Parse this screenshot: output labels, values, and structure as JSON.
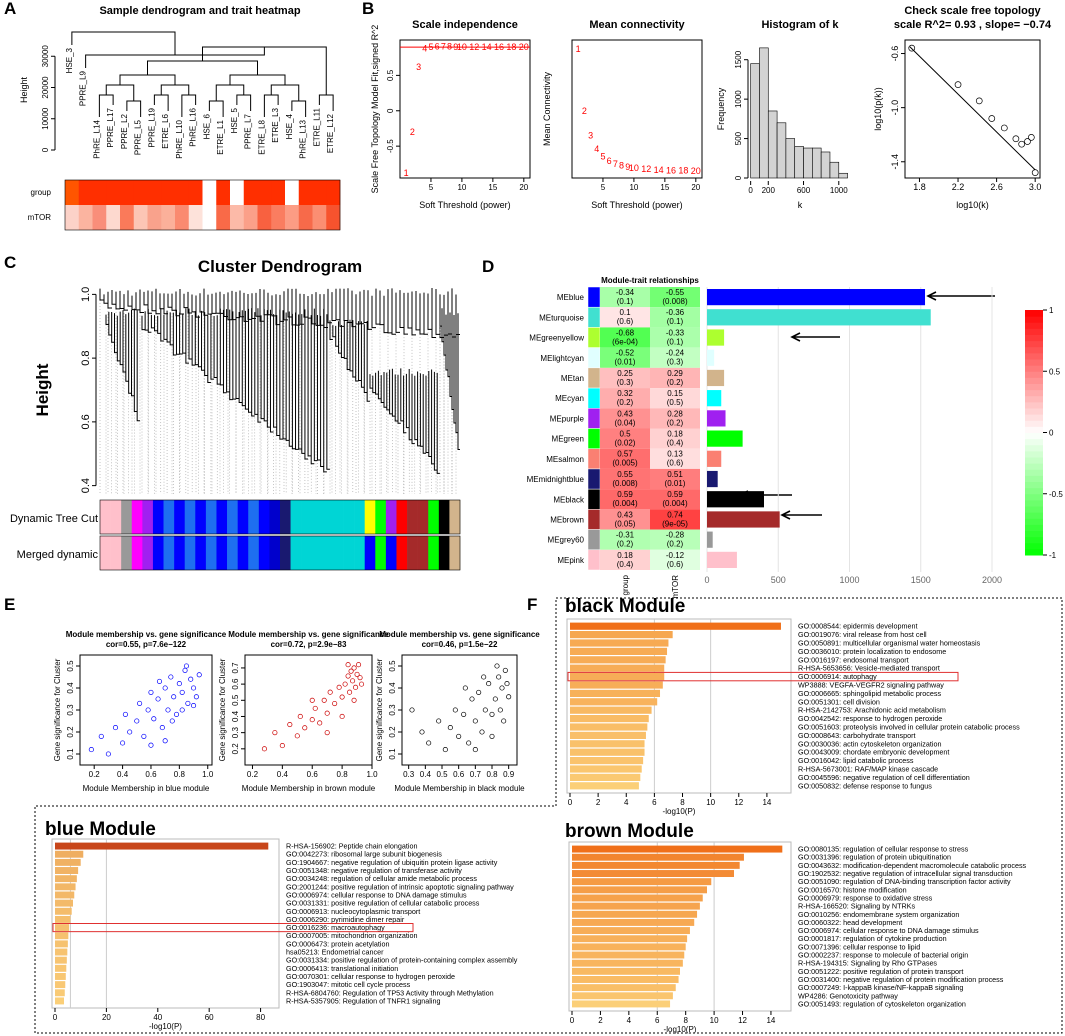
{
  "chart_data": [
    {
      "type": "sample_dendrogram",
      "panel": "A",
      "title": "Sample dendrogram and trait heatmap",
      "y_label": "Height",
      "ylim": [
        0,
        40000
      ],
      "yticks": [
        0,
        10000,
        20000,
        30000
      ],
      "leaves": [
        "HSE_3",
        "PPRE_L9",
        "PhRE_L14",
        "PPRE_L17",
        "PPRE_L2",
        "PPRE_L5",
        "PPRE_L19",
        "ETRE_L6",
        "PhRE_L10",
        "PhRE_L16",
        "HSE_6",
        "ETRE_L1",
        "HSE_5",
        "PPRE_L7",
        "ETRE_L8",
        "ETRE_L3",
        "HSE_4",
        "PhRE_L13",
        "ETRE_L11",
        "ETRE_L12"
      ],
      "rows": [
        "group",
        "mTOR"
      ],
      "row_colors": [
        [
          "#ff5500",
          "#ff2f00",
          "#ff2f00",
          "#ff2f00",
          "#ff2f00",
          "#ff2f00",
          "#ff2f00",
          "#ff2f00",
          "#ff2f00",
          "#ff2f00",
          "#ffffff",
          "#ff2f00",
          "#ffffff",
          "#ff2f00",
          "#ff2f00",
          "#ff2f00",
          "#ffffff",
          "#ff2f00",
          "#ff2f00",
          "#ff2f00"
        ],
        [
          "#fcd2c8",
          "#fbb4a0",
          "#f98e7a",
          "#fdd9cf",
          "#fa7a5a",
          "#fcc5b5",
          "#f9a28c",
          "#fbb09a",
          "#fa8a70",
          "#fde2da",
          "#ffffff",
          "#f96a48",
          "#fcbaa8",
          "#fba089",
          "#f86140",
          "#fa7d60",
          "#fc9c84",
          "#f76a4a",
          "#fb8e72",
          "#f7532e"
        ]
      ]
    },
    {
      "type": "text_scatter",
      "panel": "B",
      "title": "Scale independence",
      "x_label": "Soft Threshold (power)",
      "y_label": "Scale Free Topology Model Fit,signed R^2",
      "color": "#ff0000",
      "x": [
        1,
        2,
        3,
        4,
        5,
        6,
        7,
        8,
        9,
        10,
        12,
        14,
        16,
        18,
        20
      ],
      "values": [
        -0.88,
        -0.3,
        0.62,
        0.88,
        0.9,
        0.91,
        0.91,
        0.91,
        0.9,
        0.9,
        0.9,
        0.9,
        0.9,
        0.9,
        0.9
      ],
      "cutoff": 0.9,
      "xlim": [
        0,
        21
      ],
      "xticks": [
        5,
        10,
        15,
        20
      ],
      "ylim": [
        -0.95,
        1.0
      ],
      "yticks": [
        -0.5,
        0.0,
        0.5
      ]
    },
    {
      "type": "text_scatter",
      "title": "Mean connectivity",
      "x_label": "Soft Threshold (power)",
      "y_label": "Mean Connectivity",
      "color": "#ff0000",
      "x": [
        1,
        2,
        3,
        4,
        5,
        6,
        7,
        8,
        9,
        10,
        12,
        14,
        16,
        18,
        20
      ],
      "values": [
        2900,
        1500,
        950,
        650,
        480,
        380,
        320,
        280,
        250,
        230,
        200,
        180,
        170,
        165,
        160
      ],
      "xlim": [
        0,
        21
      ],
      "xticks": [
        5,
        10,
        15,
        20
      ],
      "ylim": [
        0,
        3100
      ]
    },
    {
      "type": "histogram",
      "title": "Histogram of k",
      "x_label": "k",
      "y_label": "Frequency",
      "color": "#d3d3d3",
      "bins": [
        0,
        100,
        200,
        300,
        400,
        500,
        600,
        700,
        800,
        900,
        1000,
        1100
      ],
      "values": [
        1450,
        1650,
        850,
        700,
        500,
        400,
        380,
        380,
        330,
        200,
        60
      ],
      "xlim": [
        -30,
        1150
      ],
      "xticks": [
        0,
        200,
        600,
        1000
      ],
      "ylim": [
        0,
        1750
      ],
      "yticks": [
        0,
        500,
        1000,
        1500
      ]
    },
    {
      "type": "scatter",
      "title": "Check scale free topology",
      "subtitle": "scale R^2= 0.93 , slope= −0.74",
      "x_label": "log10(k)",
      "y_label": "log10(p(k))",
      "x": [
        1.72,
        2.2,
        2.42,
        2.55,
        2.68,
        2.8,
        2.86,
        2.92,
        2.96,
        3.0
      ],
      "values": [
        -0.56,
        -0.83,
        -0.95,
        -1.08,
        -1.15,
        -1.23,
        -1.27,
        -1.25,
        -1.22,
        -1.48
      ],
      "fit": {
        "x": [
          1.7,
          3.0
        ],
        "y": [
          -0.55,
          -1.46
        ]
      },
      "xlim": [
        1.65,
        3.05
      ],
      "xticks": [
        1.8,
        2.2,
        2.6,
        {
          "value": 3,
          "label": "3.0"
        }
      ],
      "ylim": [
        -1.52,
        -0.5
      ],
      "yticks": [
        -0.6,
        {
          "value": -1,
          "label": "-1.0"
        },
        -1.4
      ]
    },
    {
      "type": "cluster_dendrogram",
      "panel": "C",
      "title": "Cluster Dendrogram",
      "y_label": "Height",
      "ylim": [
        0.38,
        1.02
      ],
      "yticks": [
        0.4,
        0.6,
        0.8,
        {
          "value": 1,
          "label": "1.0"
        }
      ],
      "rows": [
        "Dynamic Tree Cut",
        "Merged dynamic"
      ],
      "row_colors": [
        [
          "#ffc0cb",
          "#ffc0cb",
          "#999999",
          "#ff00ff",
          "#a020f0",
          "#0000ff",
          "#1e6ff0",
          "#0000ff",
          "#1e6ff0",
          "#0000ff",
          "#1e6ff0",
          "#0000ff",
          "#1e6ff0",
          "#0000ff",
          "#1e6ff0",
          "#0000ff",
          "#0000cc",
          "#191970",
          "#00d5d5",
          "#00d5d5",
          "#00d5d5",
          "#00d5d5",
          "#00d5d5",
          "#00d5d5",
          "#00d5d5",
          "#ffff00",
          "#00ff00",
          "#a020f0",
          "#ff0000",
          "#a52a2a",
          "#a52a2a",
          "#00ff00",
          "#000000",
          "#d2b48c"
        ],
        [
          "#ffc0cb",
          "#ffc0cb",
          "#999999",
          "#ff00ff",
          "#a020f0",
          "#0000ff",
          "#1e6ff0",
          "#0000ff",
          "#1e6ff0",
          "#0000ff",
          "#1e6ff0",
          "#0000ff",
          "#1e6ff0",
          "#0000ff",
          "#1e6ff0",
          "#0000ff",
          "#0000cc",
          "#191970",
          "#00d5d5",
          "#00d5d5",
          "#00d5d5",
          "#00d5d5",
          "#00d5d5",
          "#00d5d5",
          "#00d5d5",
          "#0000ff",
          "#00ff00",
          "#0000ff",
          "#ff0000",
          "#a52a2a",
          "#a52a2a",
          "#00ff00",
          "#000000",
          "#d2b48c"
        ]
      ]
    },
    {
      "type": "heatmap_bar",
      "panel": "D",
      "title": "Module-trait relationships",
      "columns": [
        "group",
        "mTOR"
      ],
      "modules": [
        "MEblue",
        "MEturquoise",
        "MEgreenyellow",
        "MElightcyan",
        "MEtan",
        "MEcyan",
        "MEpurple",
        "MEgreen",
        "MEsalmon",
        "MEmidnightblue",
        "MEblack",
        "MEbrown",
        "MEgrey60",
        "MEpink"
      ],
      "colors": [
        "#0000ff",
        "#40e0d0",
        "#adff2f",
        "#e0ffff",
        "#d2b48c",
        "#00ffff",
        "#a020f0",
        "#00ff00",
        "#fa8072",
        "#191970",
        "#000000",
        "#a52a2a",
        "#999999",
        "#ffc0cb"
      ],
      "group_cor": [
        -0.34,
        0.1,
        -0.68,
        -0.52,
        0.25,
        0.32,
        0.43,
        0.5,
        0.57,
        0.55,
        0.59,
        0.43,
        -0.31,
        0.18
      ],
      "group_p": [
        0.1,
        0.6,
        0.0006,
        0.01,
        0.3,
        0.2,
        0.04,
        0.02,
        0.005,
        0.008,
        0.004,
        0.05,
        0.2,
        0.4
      ],
      "group_p_labels": [
        "(0.1)",
        "(0.6)",
        "(6e-04)",
        "(0.01)",
        "(0.3)",
        "(0.2)",
        "(0.04)",
        "(0.02)",
        "(0.005)",
        "(0.008)",
        "(0.004)",
        "(0.05)",
        "(0.2)",
        "(0.4)"
      ],
      "mtor_cor": [
        -0.55,
        -0.36,
        -0.33,
        -0.24,
        0.29,
        0.15,
        0.28,
        0.18,
        0.13,
        0.51,
        0.59,
        0.74,
        -0.28,
        -0.12
      ],
      "mtor_p": [
        0.008,
        0.1,
        0.1,
        0.3,
        0.2,
        0.5,
        0.2,
        0.4,
        0.6,
        0.01,
        0.004,
        9e-05,
        0.2,
        0.6
      ],
      "mtor_p_labels": [
        "(0.008)",
        "(0.1)",
        "(0.1)",
        "(0.3)",
        "(0.2)",
        "(0.5)",
        "(0.2)",
        "(0.4)",
        "(0.6)",
        "(0.01)",
        "(0.004)",
        "(9e-05)",
        "(0.2)",
        "(0.6)"
      ],
      "values": [
        1530,
        1570,
        120,
        50,
        120,
        100,
        130,
        250,
        100,
        75,
        400,
        510,
        40,
        210
      ],
      "xlim": [
        0,
        2000
      ],
      "xticks": [
        0,
        500,
        1000,
        1500,
        2000
      ],
      "colorbar_lim": [
        -1,
        1
      ],
      "colorbar_ticks": [
        1,
        0.5,
        0,
        -0.5,
        -1
      ]
    },
    {
      "type": "scatter",
      "panel": "E",
      "title": "Module membership vs. gene significance",
      "subtitle": "cor=0.55, p=7.6e−122",
      "x_label": "Module Membership in blue module",
      "y_label": "Gene significance for Cluster",
      "color": "#0000ff",
      "x": [
        0.18,
        0.25,
        0.3,
        0.35,
        0.4,
        0.42,
        0.45,
        0.5,
        0.52,
        0.55,
        0.58,
        0.6,
        0.62,
        0.65,
        0.68,
        0.7,
        0.72,
        0.74,
        0.76,
        0.78,
        0.8,
        0.82,
        0.84,
        0.86,
        0.88,
        0.9,
        0.92,
        0.94,
        0.6,
        0.85,
        0.75,
        0.82,
        0.9,
        0.7,
        0.66
      ],
      "values": [
        0.12,
        0.18,
        0.1,
        0.22,
        0.15,
        0.28,
        0.2,
        0.25,
        0.33,
        0.18,
        0.3,
        0.38,
        0.26,
        0.35,
        0.22,
        0.4,
        0.3,
        0.45,
        0.36,
        0.28,
        0.42,
        0.38,
        0.48,
        0.33,
        0.44,
        0.4,
        0.36,
        0.46,
        0.14,
        0.5,
        0.25,
        0.3,
        0.32,
        0.16,
        0.43
      ],
      "xlim": [
        0.1,
        1.03
      ],
      "xticks": [
        0.2,
        0.4,
        0.6,
        0.8,
        {
          "value": 1,
          "label": "1.0"
        }
      ],
      "ylim": [
        0.05,
        0.55
      ],
      "yticks": [
        0.1,
        0.2,
        0.3,
        0.4,
        0.5
      ]
    },
    {
      "type": "scatter",
      "title": "Module membership vs. gene significance",
      "subtitle": "cor=0.72, p=2.9e−83",
      "x_label": "Module Membership in brown module",
      "y_label": "Gene significance for Cluster",
      "color": "#cc0000",
      "x": [
        0.28,
        0.35,
        0.4,
        0.45,
        0.5,
        0.52,
        0.55,
        0.6,
        0.62,
        0.65,
        0.68,
        0.7,
        0.72,
        0.75,
        0.78,
        0.8,
        0.82,
        0.84,
        0.85,
        0.86,
        0.87,
        0.88,
        0.89,
        0.9,
        0.91,
        0.92,
        0.93,
        0.7,
        0.8,
        0.6,
        0.88,
        0.84
      ],
      "values": [
        0.2,
        0.3,
        0.22,
        0.35,
        0.28,
        0.4,
        0.33,
        0.38,
        0.45,
        0.36,
        0.5,
        0.42,
        0.55,
        0.48,
        0.58,
        0.52,
        0.6,
        0.65,
        0.55,
        0.68,
        0.62,
        0.7,
        0.58,
        0.66,
        0.72,
        0.64,
        0.6,
        0.3,
        0.4,
        0.5,
        0.5,
        0.72
      ],
      "xlim": [
        0.15,
        1.0
      ],
      "xticks": [
        0.2,
        0.4,
        0.6,
        0.8,
        {
          "value": 1,
          "label": "1.0"
        }
      ],
      "ylim": [
        0.1,
        0.78
      ],
      "yticks": [
        0.2,
        0.3,
        0.4,
        0.5,
        0.6,
        0.7
      ]
    },
    {
      "type": "scatter",
      "title": "Module membership vs. gene significance",
      "subtitle": "cor=0.46, p=1.5e−22",
      "x_label": "Module Membership in black module",
      "y_label": "Gene significance for Cluster",
      "color": "#000000",
      "x": [
        0.32,
        0.38,
        0.42,
        0.48,
        0.52,
        0.55,
        0.58,
        0.6,
        0.63,
        0.66,
        0.68,
        0.7,
        0.72,
        0.74,
        0.76,
        0.78,
        0.8,
        0.82,
        0.84,
        0.85,
        0.86,
        0.88,
        0.9,
        0.7,
        0.8,
        0.64,
        0.87,
        0.75,
        0.83,
        0.89
      ],
      "values": [
        0.3,
        0.2,
        0.15,
        0.25,
        0.12,
        0.22,
        0.3,
        0.18,
        0.28,
        0.15,
        0.35,
        0.25,
        0.38,
        0.2,
        0.3,
        0.42,
        0.28,
        0.35,
        0.45,
        0.3,
        0.4,
        0.48,
        0.36,
        0.12,
        0.18,
        0.4,
        0.25,
        0.45,
        0.5,
        0.42
      ],
      "xlim": [
        0.26,
        0.95
      ],
      "xticks": [
        0.3,
        0.4,
        0.5,
        0.6,
        0.7,
        0.8,
        0.9
      ],
      "ylim": [
        0.05,
        0.55
      ],
      "yticks": [
        0.1,
        0.2,
        0.3,
        0.4,
        0.5
      ]
    },
    {
      "type": "go_bar",
      "panel": "F",
      "title": "black Module",
      "x_label": "-log10(P)",
      "highlight": 6,
      "colors": [
        "#fbcf78",
        "#f0701a"
      ],
      "categories": [
        "GO:0008544: epidermis development",
        "GO:0019076: viral release from host cell",
        "GO:0050891: multicellular organismal water homeostasis",
        "GO:0036010: protein localization to endosome",
        "GO:0016197: endosomal transport",
        "R-HSA-5653656: Vesicle-mediated transport",
        "GO:0006914: autophagy",
        "WP3888: VEGFA-VEGFR2 signaling pathway",
        "GO:0006665: sphingolipid metabolic process",
        "GO:0051301: cell division",
        "R-HSA-2142753: Arachidonic acid metabolism",
        "GO:0042542: response to hydrogen peroxide",
        "GO:0051603: proteolysis involved in cellular protein catabolic process",
        "GO:0008643: carbohydrate transport",
        "GO:0030036: actin cytoskeleton organization",
        "GO:0043009: chordate embryonic development",
        "GO:0016042: lipid catabolic process",
        "R-HSA-5673001: RAF/MAP kinase cascade",
        "GO:0045596: negative regulation of cell differentiation",
        "GO:0050832: defense response to fungus"
      ],
      "values": [
        15,
        7.3,
        7.0,
        6.9,
        6.8,
        6.7,
        6.7,
        6.6,
        6.4,
        6.2,
        5.8,
        5.6,
        5.5,
        5.4,
        5.3,
        5.3,
        5.2,
        5.1,
        5.0,
        4.9
      ],
      "xlim": [
        0,
        15.5
      ],
      "xticks": [
        0,
        2,
        4,
        6,
        8,
        10,
        12,
        14
      ],
      "grid_at": [
        6,
        10
      ]
    },
    {
      "type": "go_bar",
      "title": "blue Module",
      "x_label": "-log10(P)",
      "highlight": 10,
      "colors": [
        "#fbcf78",
        "#c8461a"
      ],
      "categories": [
        "R-HSA-156902: Peptide chain elongation",
        "GO:0042273: ribosomal large subunit biogenesis",
        "GO:1904667: negative regulation of ubiquitin protein ligase activity",
        "GO:0051348: negative regulation of transferase activity",
        "GO:0034248: regulation of cellular amide metabolic process",
        "GO:2001244: positive regulation of intrinsic apoptotic signaling pathway",
        "GO:0006974: cellular response to DNA damage stimulus",
        "GO:0031331: positive regulation of cellular catabolic process",
        "GO:0006913: nucleocytoplasmic transport",
        "GO:0006290: pyrimidine dimer repair",
        "GO:0016236: macroautophagy",
        "GO:0007005: mitochondrion organization",
        "GO:0006473: protein acetylation",
        "hsa05213: Endometrial cancer",
        "GO:0031334: positive regulation of protein-containing complex assembly",
        "GO:0006413: translational initiation",
        "GO:0070301: cellular response to hydrogen peroxide",
        "GO:1903047: mitotic cell cycle process",
        "R-HSA-6804760: Regulation of TP53 Activity through Methylation",
        "R-HSA-5357905: Regulation of TNFR1 signaling"
      ],
      "values": [
        83,
        11,
        10,
        9,
        8.5,
        8,
        7.5,
        7,
        6.5,
        6,
        5.5,
        5.2,
        5,
        4.8,
        4.6,
        4.4,
        4.2,
        4,
        3.8,
        3.5
      ],
      "xlim": [
        0,
        86
      ],
      "xticks": [
        0,
        20,
        40,
        60,
        80
      ],
      "grid_at": [
        6,
        20
      ]
    },
    {
      "type": "go_bar",
      "title": "brown Module",
      "x_label": "-log10(P)",
      "colors": [
        "#fbcf78",
        "#f0701a"
      ],
      "categories": [
        "GO:0080135: regulation of cellular response to stress",
        "GO:0031396: regulation of protein ubiquitination",
        "GO:0043632: modification-dependent macromolecule catabolic process",
        "GO:1902532: negative regulation of intracellular signal transduction",
        "GO:0051090: regulation of DNA-binding transcription factor activity",
        "GO:0016570: histone modification",
        "GO:0006979: response to oxidative stress",
        "R-HSA-166520: Signaling by NTRKs",
        "GO:0010256: endomembrane system organization",
        "GO:0060322: head development",
        "GO:0006974: cellular response to DNA damage stimulus",
        "GO:0001817: regulation of cytokine production",
        "GO:0071396: cellular response to lipid",
        "GO:0002237: response to molecule of bacterial origin",
        "R-HSA-194315: Signaling by Rho GTPases",
        "GO:0051222: positive regulation of protein transport",
        "GO:0031400: negative regulation of protein modification process",
        "GO:0007249: I-kappaB kinase/NF-kappaB signaling",
        "WP4286: Genotoxicity pathway",
        "GO:0051493: regulation of cytoskeleton organization"
      ],
      "values": [
        14.8,
        12.1,
        11.8,
        11.4,
        9.8,
        9.5,
        9.2,
        9.0,
        8.8,
        8.6,
        8.3,
        8.1,
        8.0,
        7.9,
        7.8,
        7.6,
        7.5,
        7.3,
        7.1,
        6.9
      ],
      "xlim": [
        0,
        15.2
      ],
      "xticks": [
        0,
        2,
        4,
        6,
        8,
        10,
        12,
        14
      ],
      "grid_at": [
        6,
        10
      ]
    }
  ]
}
